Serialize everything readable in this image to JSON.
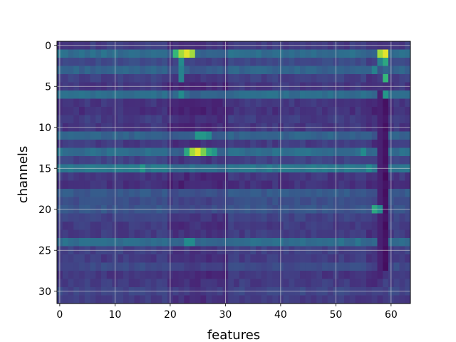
{
  "chart_data": {
    "type": "heatmap",
    "title": "",
    "xlabel": "features",
    "ylabel": "channels",
    "n_cols": 64,
    "n_rows": 32,
    "xlim": [
      -0.5,
      63.5
    ],
    "ylim": [
      31.5,
      -0.5
    ],
    "xticks": [
      0,
      10,
      20,
      30,
      40,
      50,
      60
    ],
    "yticks": [
      0,
      5,
      10,
      15,
      20,
      25,
      30
    ],
    "grid": true,
    "colormap": "viridis",
    "value_range": [
      0,
      1
    ],
    "row_base": [
      0.22,
      0.45,
      0.28,
      0.4,
      0.24,
      0.2,
      0.45,
      0.2,
      0.18,
      0.22,
      0.2,
      0.4,
      0.22,
      0.45,
      0.25,
      0.5,
      0.2,
      0.18,
      0.35,
      0.3,
      0.33,
      0.25,
      0.22,
      0.22,
      0.45,
      0.24,
      0.22,
      0.28,
      0.2,
      0.22,
      0.26,
      0.22
    ],
    "hotspots": [
      {
        "row": 1,
        "col": 22,
        "value": 0.9
      },
      {
        "row": 1,
        "col": 23,
        "value": 0.97
      },
      {
        "row": 1,
        "col": 24,
        "value": 0.9
      },
      {
        "row": 1,
        "col": 21,
        "value": 0.75
      },
      {
        "row": 1,
        "col": 58,
        "value": 0.9
      },
      {
        "row": 1,
        "col": 59,
        "value": 0.97
      },
      {
        "row": 2,
        "col": 59,
        "value": 0.7
      },
      {
        "row": 2,
        "col": 58,
        "value": 0.55
      },
      {
        "row": 2,
        "col": 22,
        "value": 0.6
      },
      {
        "row": 3,
        "col": 22,
        "value": 0.55
      },
      {
        "row": 3,
        "col": 57,
        "value": 0.55
      },
      {
        "row": 4,
        "col": 22,
        "value": 0.55
      },
      {
        "row": 4,
        "col": 59,
        "value": 0.75
      },
      {
        "row": 6,
        "col": 22,
        "value": 0.6
      },
      {
        "row": 6,
        "col": 59,
        "value": 0.65
      },
      {
        "row": 11,
        "col": 25,
        "value": 0.65
      },
      {
        "row": 11,
        "col": 26,
        "value": 0.65
      },
      {
        "row": 11,
        "col": 27,
        "value": 0.6
      },
      {
        "row": 13,
        "col": 23,
        "value": 0.7
      },
      {
        "row": 13,
        "col": 24,
        "value": 0.9
      },
      {
        "row": 13,
        "col": 25,
        "value": 0.97
      },
      {
        "row": 13,
        "col": 26,
        "value": 0.85
      },
      {
        "row": 13,
        "col": 27,
        "value": 0.7
      },
      {
        "row": 13,
        "col": 28,
        "value": 0.65
      },
      {
        "row": 13,
        "col": 55,
        "value": 0.6
      },
      {
        "row": 15,
        "col": 15,
        "value": 0.65
      },
      {
        "row": 15,
        "col": 56,
        "value": 0.6
      },
      {
        "row": 20,
        "col": 57,
        "value": 0.7
      },
      {
        "row": 20,
        "col": 58,
        "value": 0.6
      },
      {
        "row": 24,
        "col": 23,
        "value": 0.6
      },
      {
        "row": 24,
        "col": 24,
        "value": 0.6
      }
    ],
    "dark_column": {
      "col": 59,
      "rows_from": 6,
      "rows_to": 27,
      "value": 0.03
    }
  }
}
